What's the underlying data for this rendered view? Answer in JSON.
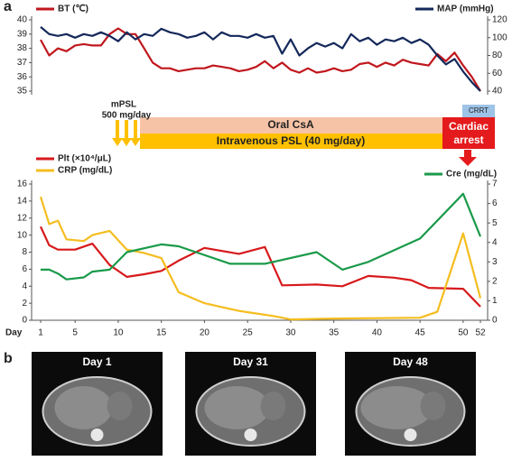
{
  "panel_labels": [
    "a",
    "b"
  ],
  "chart_data": [
    {
      "type": "line",
      "xlim": [
        1,
        52
      ],
      "ylim": [
        35,
        40
      ],
      "yticks": [
        35,
        36,
        37,
        38,
        39,
        40
      ],
      "y2lim": [
        40,
        120
      ],
      "y2ticks": [
        40,
        60,
        80,
        100,
        120
      ],
      "series": [
        {
          "name": "BT (℃)",
          "color": "#c0171d",
          "x": [
            1,
            2,
            3,
            4,
            5,
            6,
            7,
            8,
            9,
            10,
            11,
            12,
            13,
            14,
            15,
            16,
            17,
            18,
            19,
            20,
            21,
            22,
            23,
            24,
            25,
            26,
            27,
            28,
            29,
            30,
            31,
            32,
            33,
            34,
            35,
            36,
            37,
            38,
            39,
            40,
            41,
            42,
            43,
            44,
            45,
            46,
            47,
            48,
            49,
            50,
            51,
            52
          ],
          "values": [
            38.6,
            37.5,
            38.0,
            37.8,
            38.2,
            38.3,
            38.2,
            38.2,
            39.0,
            39.4,
            39.0,
            39.0,
            38.0,
            37.0,
            36.6,
            36.6,
            36.4,
            36.5,
            36.6,
            36.6,
            36.8,
            36.7,
            36.6,
            36.4,
            36.5,
            36.7,
            37.1,
            36.6,
            37.0,
            36.5,
            36.3,
            36.6,
            36.3,
            36.4,
            36.6,
            36.4,
            36.5,
            36.9,
            37.0,
            36.7,
            37.0,
            36.8,
            37.2,
            37.0,
            36.9,
            36.8,
            37.6,
            37.1,
            37.7,
            36.8,
            36.0,
            35.0
          ]
        },
        {
          "name": "MAP (mmHg)",
          "color": "#14285a",
          "axis": "y2",
          "x": [
            1,
            2,
            3,
            4,
            5,
            6,
            7,
            8,
            9,
            10,
            11,
            12,
            13,
            14,
            15,
            16,
            17,
            18,
            19,
            20,
            21,
            22,
            23,
            24,
            25,
            26,
            27,
            28,
            29,
            30,
            31,
            32,
            33,
            34,
            35,
            36,
            37,
            38,
            39,
            40,
            41,
            42,
            43,
            44,
            45,
            46,
            47,
            48,
            49,
            50,
            51,
            52
          ],
          "values": [
            112,
            104,
            102,
            104,
            100,
            104,
            102,
            106,
            102,
            96,
            106,
            98,
            104,
            102,
            110,
            106,
            104,
            100,
            102,
            106,
            98,
            106,
            102,
            102,
            100,
            104,
            100,
            102,
            82,
            98,
            80,
            88,
            94,
            90,
            94,
            88,
            104,
            96,
            100,
            92,
            98,
            96,
            100,
            94,
            98,
            92,
            80,
            70,
            76,
            62,
            50,
            40
          ]
        }
      ]
    },
    {
      "type": "line",
      "x_label": "Day",
      "xlim": [
        1,
        52
      ],
      "xticks": [
        1,
        5,
        10,
        15,
        20,
        25,
        30,
        35,
        40,
        45,
        50,
        52
      ],
      "ylim": [
        0,
        16
      ],
      "yticks": [
        0,
        2,
        4,
        6,
        8,
        10,
        12,
        14,
        16
      ],
      "y2lim": [
        0,
        7
      ],
      "y2ticks": [
        0,
        1,
        2,
        3,
        4,
        5,
        6,
        7
      ],
      "series": [
        {
          "name": "Plt (×10⁴/μL)",
          "color": "#d7191c",
          "x": [
            1,
            2,
            3,
            5,
            7,
            9,
            11,
            13,
            15,
            17,
            20,
            24,
            27,
            29,
            33,
            36,
            39,
            42,
            44,
            46,
            50,
            52
          ],
          "values": [
            11,
            8.8,
            8.3,
            8.3,
            9.0,
            6.5,
            5.1,
            5.4,
            5.8,
            7.0,
            8.5,
            7.8,
            8.6,
            4.1,
            4.2,
            4.0,
            5.2,
            5.0,
            4.7,
            3.8,
            3.7,
            1.6
          ]
        },
        {
          "name": "CRP (mg/dL)",
          "color": "#f5bd1f",
          "x": [
            1,
            2,
            3,
            4,
            6,
            7,
            9,
            11,
            13,
            15,
            17,
            20,
            24,
            28,
            30,
            35,
            45,
            47,
            50,
            52
          ],
          "values": [
            14.5,
            11.3,
            11.7,
            9.5,
            9.3,
            10.0,
            10.5,
            8.3,
            7.9,
            7.3,
            3.3,
            2.0,
            1.1,
            0.5,
            0.1,
            0.2,
            0.3,
            1.0,
            10.2,
            2.6
          ]
        },
        {
          "name": "Cre (mg/dL)",
          "color": "#1a9a4a",
          "axis": "y2",
          "x": [
            1,
            2,
            3,
            4,
            6,
            7,
            9,
            11,
            15,
            17,
            23,
            27,
            33,
            36,
            39,
            45,
            50,
            52
          ],
          "values": [
            2.6,
            2.6,
            2.4,
            2.1,
            2.2,
            2.5,
            2.6,
            3.5,
            3.9,
            3.8,
            2.9,
            2.9,
            3.5,
            2.6,
            3.0,
            4.2,
            6.5,
            4.3
          ]
        }
      ]
    }
  ],
  "timeline": {
    "mpsl": "mPSL",
    "mpsl_dose": "500 mg/day",
    "csa": "Oral CsA",
    "psl": "Intravenous PSL (40 mg/day)",
    "crrt": "CRRT",
    "arrest": "Cardiac arrest"
  },
  "images": [
    "Day 1",
    "Day 31",
    "Day 48"
  ]
}
